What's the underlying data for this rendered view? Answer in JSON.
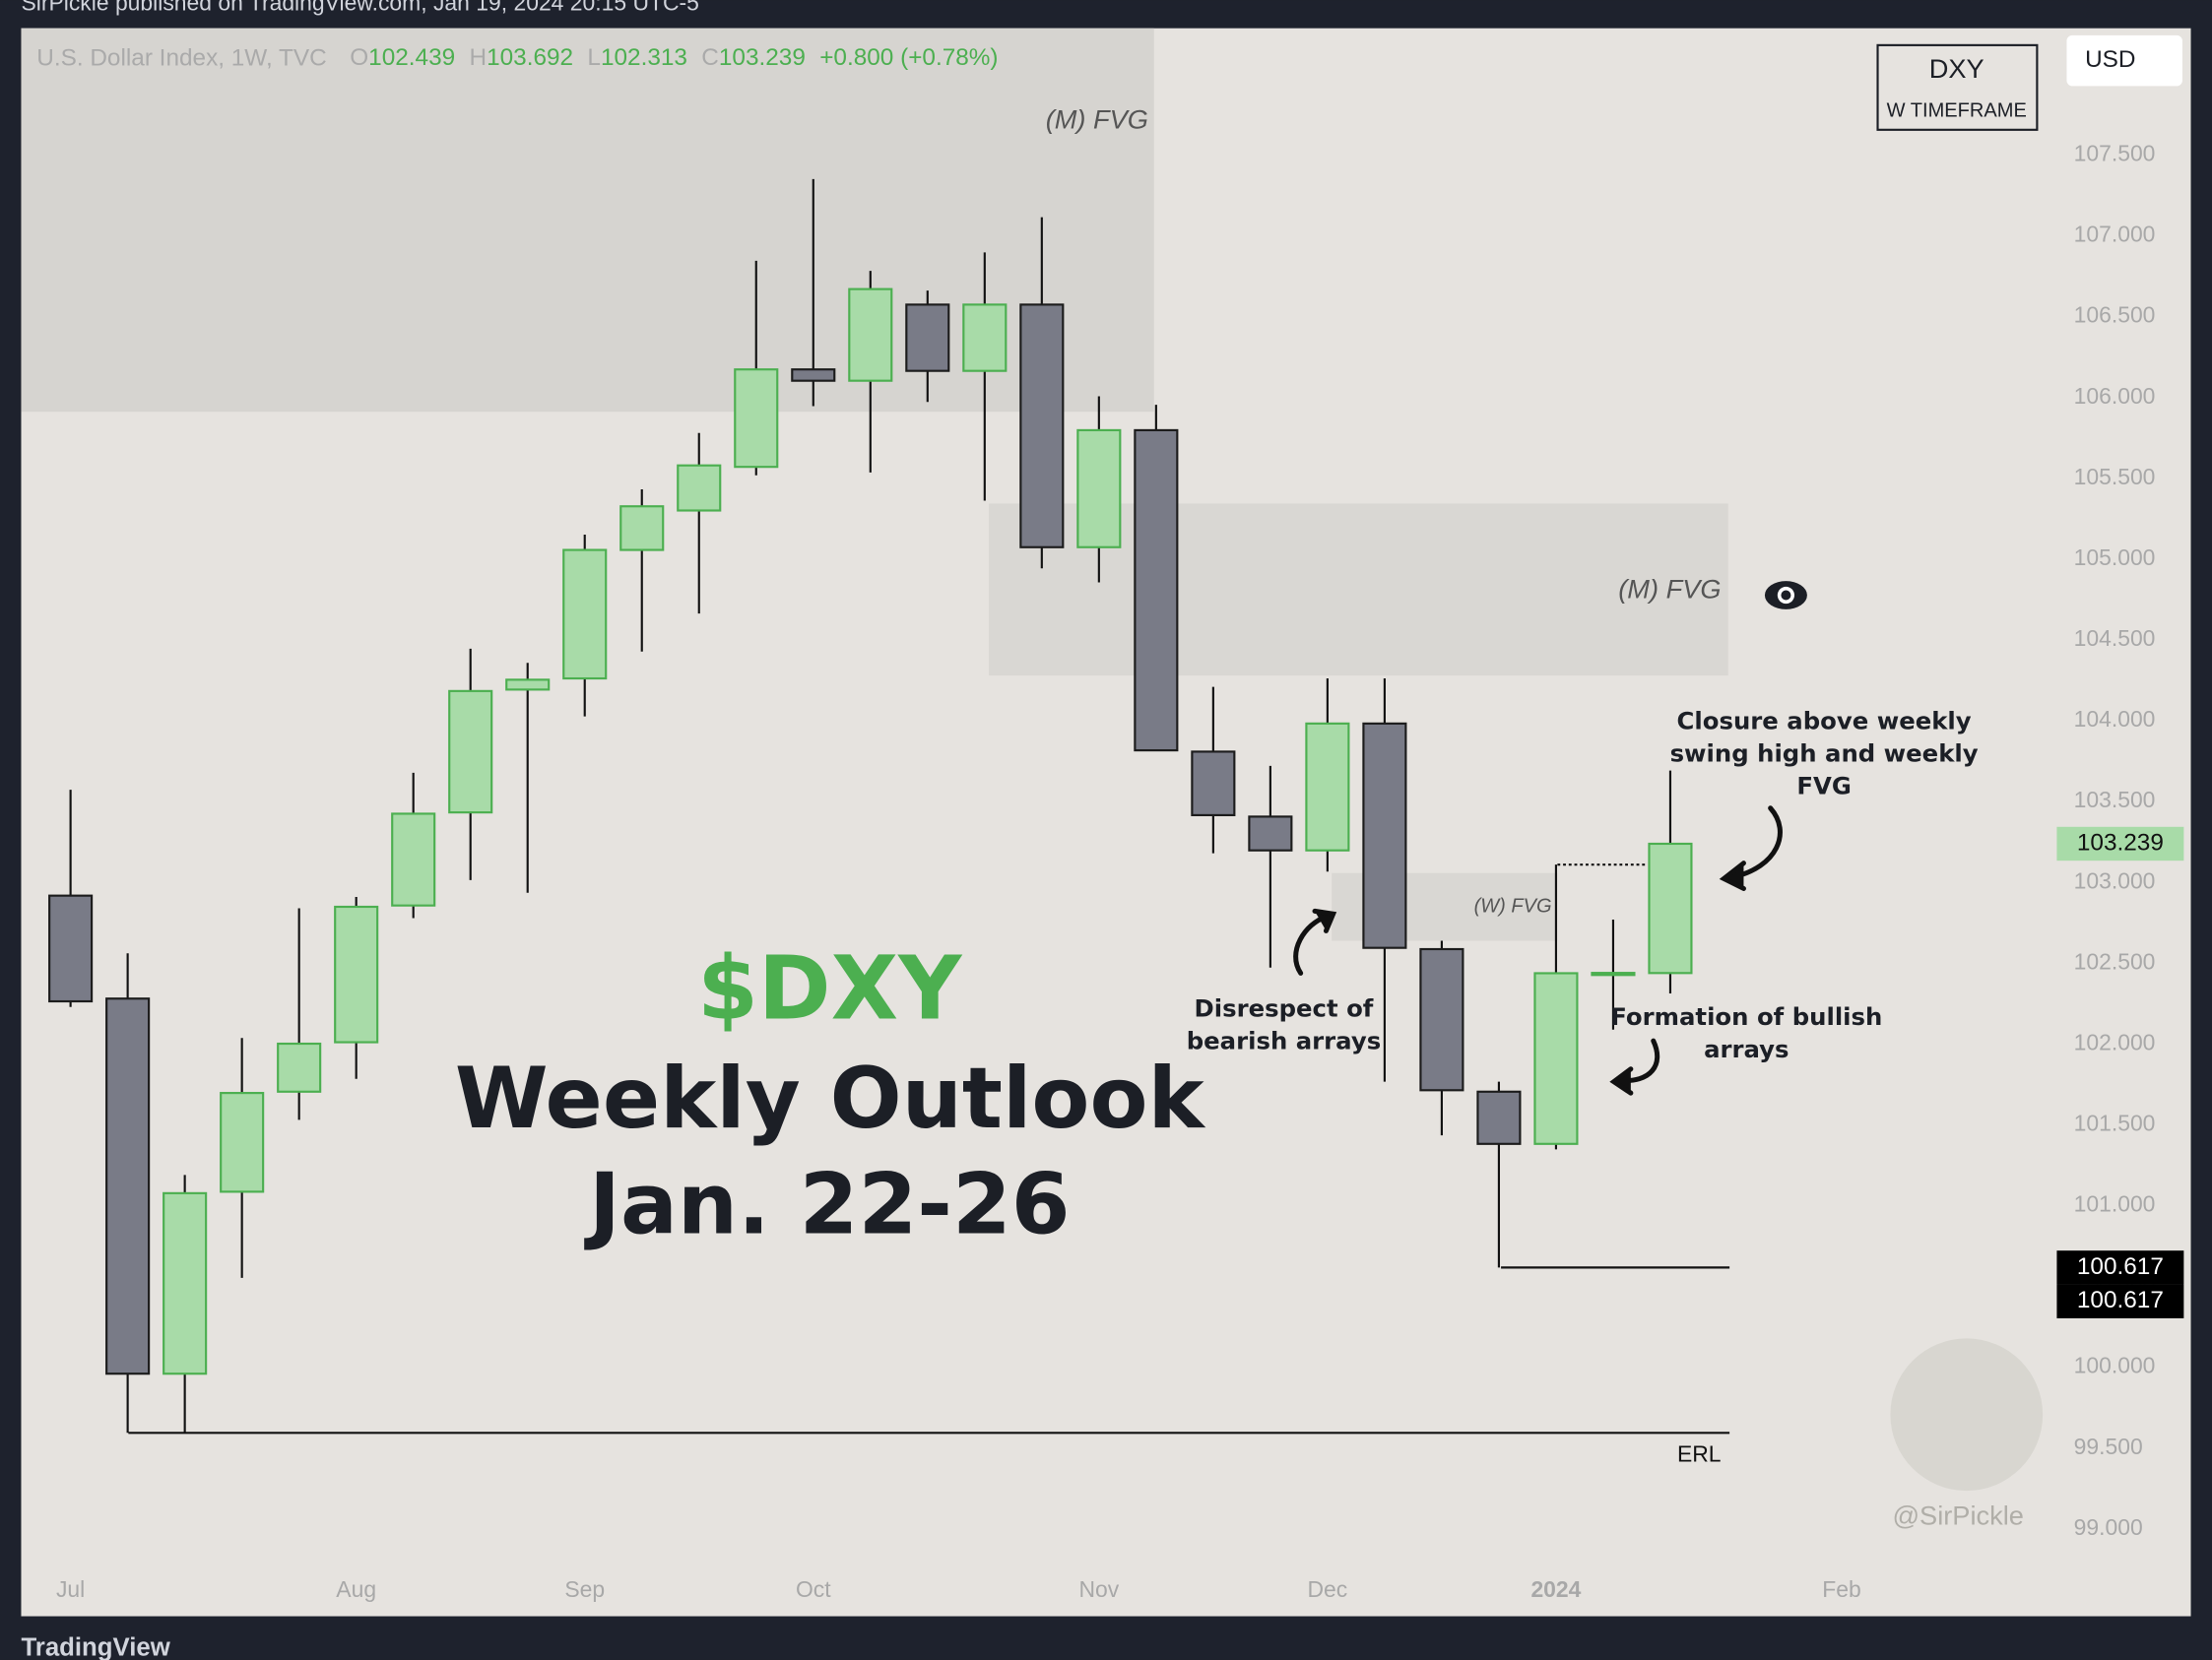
{
  "header": {
    "published": "SirPickle published on TradingView.com, Jan 19, 2024 20:15 UTC-5",
    "brand": "TradingView",
    "currency": "USD",
    "symbol": "DXY",
    "timeframe": "W TIMEFRAME",
    "watermark": "@SirPickle"
  },
  "chart_data": {
    "type": "candlestick",
    "instrument": "U.S. Dollar Index, 1W, TVC",
    "ohlc_keys": [
      "O",
      "H",
      "L",
      "C"
    ],
    "change_text": "+0.800 (+0.78%)",
    "categories": [
      "Jul",
      null,
      null,
      null,
      null,
      "Aug",
      null,
      null,
      null,
      "Sep",
      null,
      null,
      null,
      "Oct",
      null,
      null,
      null,
      null,
      "Nov",
      null,
      null,
      null,
      "Dec",
      null,
      null,
      null,
      "2024",
      null,
      null,
      null,
      null,
      "Feb"
    ],
    "open": [
      102.918,
      102.281,
      99.96,
      101.086,
      101.705,
      102.011,
      102.857,
      103.433,
      104.193,
      104.262,
      105.057,
      105.301,
      105.571,
      106.174,
      106.104,
      106.575,
      106.165,
      106.575,
      105.074,
      105.798,
      103.809,
      103.407,
      103.198,
      103.983,
      102.587,
      101.705,
      101.382,
      102.438,
      102.439,
      null,
      null,
      null
    ],
    "high": [
      103.573,
      102.561,
      101.19,
      102.037,
      102.84,
      102.91,
      103.678,
      104.446,
      104.358,
      105.152,
      105.432,
      105.781,
      106.846,
      107.352,
      106.784,
      106.662,
      106.898,
      107.116,
      106.008,
      105.955,
      104.21,
      103.721,
      104.262,
      104.262,
      102.639,
      101.767,
      103.11,
      102.77,
      103.692,
      null,
      null,
      null
    ],
    "low": [
      102.229,
      99.594,
      99.594,
      100.553,
      101.531,
      101.784,
      102.779,
      103.014,
      102.936,
      104.027,
      104.428,
      104.664,
      105.519,
      105.947,
      105.536,
      105.973,
      105.362,
      104.943,
      104.856,
      103.817,
      103.18,
      102.473,
      103.067,
      101.767,
      101.435,
      100.617,
      101.348,
      102.089,
      102.313,
      null,
      null,
      null
    ],
    "close": [
      102.264,
      99.96,
      101.077,
      101.697,
      102.002,
      102.849,
      103.425,
      104.184,
      104.254,
      105.057,
      105.327,
      105.58,
      106.174,
      106.104,
      106.671,
      106.165,
      106.575,
      105.074,
      105.798,
      103.817,
      103.416,
      103.198,
      103.983,
      102.595,
      101.714,
      101.382,
      102.438,
      102.44,
      103.239,
      null,
      null,
      null
    ],
    "up_color": "#a8dba8",
    "down_color": "#797b87",
    "ylim": [
      98.468,
      108.285
    ],
    "yticks": [
      {
        "value": 99,
        "label": "99.000"
      },
      {
        "value": 99.5,
        "label": "99.500"
      },
      {
        "value": 100,
        "label": "100.000"
      },
      {
        "value": 100.5,
        "label": "100.500"
      },
      {
        "value": 101,
        "label": "101.000"
      },
      {
        "value": 101.5,
        "label": "101.500"
      },
      {
        "value": 102,
        "label": "102.000"
      },
      {
        "value": 102.5,
        "label": "102.500"
      },
      {
        "value": 103,
        "label": "103.000"
      },
      {
        "value": 103.5,
        "label": "103.500"
      },
      {
        "value": 104,
        "label": "104.000"
      },
      {
        "value": 104.5,
        "label": "104.500"
      },
      {
        "value": 105,
        "label": "105.000"
      },
      {
        "value": 105.5,
        "label": "105.500"
      },
      {
        "value": 106,
        "label": "106.000"
      },
      {
        "value": 106.5,
        "label": "106.500"
      },
      {
        "value": 107,
        "label": "107.000"
      },
      {
        "value": 107.5,
        "label": "107.500"
      }
    ],
    "price_labels": [
      {
        "value": 103.239,
        "color": "#a8dba8"
      },
      {
        "value": 100.617,
        "color": "#000000"
      },
      {
        "value": 100.617,
        "color": "#000000"
      }
    ],
    "zones": [
      {
        "label": "(M) FVG",
        "top": 108.285,
        "bottom": 105.912
      },
      {
        "label": "(M) FVG",
        "top": 105.344,
        "bottom": 104.28
      },
      {
        "label": "(W) FVG",
        "top": 103.058,
        "bottom": 102.639
      }
    ],
    "levels": [
      {
        "value": 99.594,
        "label": "ERL"
      },
      {
        "value": 100.617
      },
      {
        "value": 103.11
      }
    ],
    "title": "$DXY",
    "subtitle_lines": [
      "Weekly Outlook",
      "Jan. 22-26"
    ],
    "annotations": [
      [
        "Disrespect of",
        "bearish arrays"
      ],
      [
        "Closure above weekly",
        "swing high and weekly",
        "FVG"
      ],
      [
        "Formation of bullish",
        "arrays"
      ]
    ]
  }
}
